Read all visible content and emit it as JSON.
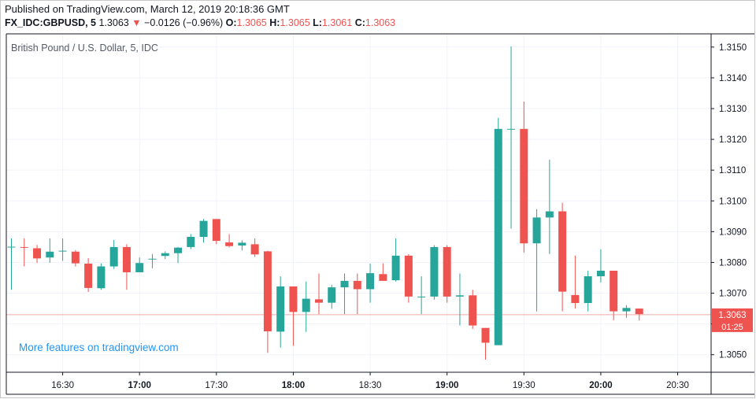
{
  "header": {
    "published": "Published on TradingView.com, March 12, 2019 20:18:36 GMT",
    "symbol": "FX_IDC:GBPUSD, 5",
    "last": "1.3063",
    "arrow": "▼",
    "change": "−0.0126 (−0.96%)",
    "o_label": "O:",
    "o_value": "1.3065",
    "h_label": "H:",
    "h_value": "1.3065",
    "l_label": "L:",
    "l_value": "1.3061",
    "c_label": "C:",
    "c_value": "1.3063"
  },
  "colors": {
    "up": "#26a69a",
    "down": "#ef5350",
    "grid": "#f0f3fa",
    "axis": "#131722",
    "link": "#2196f3"
  },
  "chart_data": {
    "type": "candlestick",
    "title": "British Pound / U.S. Dollar, 5, IDC",
    "watermark": "More features on tradingview.com",
    "ylim": [
      1.30443,
      1.31543
    ],
    "y_ticks": [
      "1.3050",
      "1.3060",
      "1.3070",
      "1.3080",
      "1.3090",
      "1.3100",
      "1.3110",
      "1.3120",
      "1.3130",
      "1.3140",
      "1.3150"
    ],
    "x_ticks": [
      {
        "label": "16:30",
        "bar": 4,
        "bold": false
      },
      {
        "label": "17:00",
        "bar": 10,
        "bold": true
      },
      {
        "label": "17:30",
        "bar": 16,
        "bold": false
      },
      {
        "label": "18:00",
        "bar": 22,
        "bold": true
      },
      {
        "label": "18:30",
        "bar": 28,
        "bold": false
      },
      {
        "label": "19:00",
        "bar": 34,
        "bold": true
      },
      {
        "label": "19:30",
        "bar": 40,
        "bold": false
      },
      {
        "label": "20:00",
        "bar": 46,
        "bold": true
      },
      {
        "label": "20:30",
        "bar": 52,
        "bold": false
      }
    ],
    "last_price": "1.3063",
    "countdown": "01:25",
    "candles": [
      {
        "t": "16:05",
        "o": 1.3085,
        "h": 1.30878,
        "l": 1.30711,
        "c": 1.30851
      },
      {
        "t": "16:10",
        "o": 1.3085,
        "h": 1.30878,
        "l": 1.30787,
        "c": 1.30849
      },
      {
        "t": "16:15",
        "o": 1.30846,
        "h": 1.30857,
        "l": 1.30798,
        "c": 1.30813
      },
      {
        "t": "16:20",
        "o": 1.30816,
        "h": 1.30878,
        "l": 1.30799,
        "c": 1.30835
      },
      {
        "t": "16:25",
        "o": 1.30838,
        "h": 1.30878,
        "l": 1.30805,
        "c": 1.30838
      },
      {
        "t": "16:30",
        "o": 1.30835,
        "h": 1.3084,
        "l": 1.30787,
        "c": 1.30797
      },
      {
        "t": "16:35",
        "o": 1.30796,
        "h": 1.30814,
        "l": 1.30704,
        "c": 1.30717
      },
      {
        "t": "16:40",
        "o": 1.30716,
        "h": 1.30797,
        "l": 1.30711,
        "c": 1.30787
      },
      {
        "t": "16:45",
        "o": 1.30787,
        "h": 1.30873,
        "l": 1.30779,
        "c": 1.3085
      },
      {
        "t": "16:50",
        "o": 1.3085,
        "h": 1.30859,
        "l": 1.30711,
        "c": 1.30768
      },
      {
        "t": "16:55",
        "o": 1.30768,
        "h": 1.30816,
        "l": 1.30768,
        "c": 1.30798
      },
      {
        "t": "17:00",
        "o": 1.30812,
        "h": 1.30827,
        "l": 1.30781,
        "c": 1.30812
      },
      {
        "t": "17:05",
        "o": 1.30821,
        "h": 1.30836,
        "l": 1.30811,
        "c": 1.3083
      },
      {
        "t": "17:10",
        "o": 1.3083,
        "h": 1.3085,
        "l": 1.30798,
        "c": 1.30848
      },
      {
        "t": "17:15",
        "o": 1.3085,
        "h": 1.30892,
        "l": 1.30843,
        "c": 1.30883
      },
      {
        "t": "17:20",
        "o": 1.30883,
        "h": 1.30941,
        "l": 1.30864,
        "c": 1.30935
      },
      {
        "t": "17:25",
        "o": 1.30941,
        "h": 1.30941,
        "l": 1.30859,
        "c": 1.3087
      },
      {
        "t": "17:30",
        "o": 1.30865,
        "h": 1.30892,
        "l": 1.30849,
        "c": 1.30853
      },
      {
        "t": "17:35",
        "o": 1.30855,
        "h": 1.30872,
        "l": 1.30839,
        "c": 1.30864
      },
      {
        "t": "17:40",
        "o": 1.30859,
        "h": 1.30878,
        "l": 1.30818,
        "c": 1.30826
      },
      {
        "t": "17:45",
        "o": 1.30836,
        "h": 1.30838,
        "l": 1.30506,
        "c": 1.30576
      },
      {
        "t": "17:50",
        "o": 1.30575,
        "h": 1.30755,
        "l": 1.30523,
        "c": 1.30722
      },
      {
        "t": "17:55",
        "o": 1.30722,
        "h": 1.30722,
        "l": 1.30529,
        "c": 1.30639
      },
      {
        "t": "18:00",
        "o": 1.30639,
        "h": 1.30738,
        "l": 1.30574,
        "c": 1.30682
      },
      {
        "t": "18:05",
        "o": 1.3068,
        "h": 1.30764,
        "l": 1.30632,
        "c": 1.30669
      },
      {
        "t": "18:10",
        "o": 1.30669,
        "h": 1.30727,
        "l": 1.30649,
        "c": 1.30719
      },
      {
        "t": "18:15",
        "o": 1.30719,
        "h": 1.30764,
        "l": 1.30632,
        "c": 1.3074
      },
      {
        "t": "18:20",
        "o": 1.3074,
        "h": 1.30764,
        "l": 1.30632,
        "c": 1.30713
      },
      {
        "t": "18:25",
        "o": 1.30713,
        "h": 1.30796,
        "l": 1.30669,
        "c": 1.30765
      },
      {
        "t": "18:30",
        "o": 1.30762,
        "h": 1.30797,
        "l": 1.30745,
        "c": 1.3074
      },
      {
        "t": "18:35",
        "o": 1.30742,
        "h": 1.30878,
        "l": 1.30738,
        "c": 1.30822
      },
      {
        "t": "18:40",
        "o": 1.30822,
        "h": 1.30827,
        "l": 1.30669,
        "c": 1.30689
      },
      {
        "t": "18:45",
        "o": 1.30689,
        "h": 1.30755,
        "l": 1.30632,
        "c": 1.30689
      },
      {
        "t": "18:50",
        "o": 1.30689,
        "h": 1.30856,
        "l": 1.30679,
        "c": 1.3085
      },
      {
        "t": "18:55",
        "o": 1.3085,
        "h": 1.30856,
        "l": 1.30669,
        "c": 1.30689
      },
      {
        "t": "19:00",
        "o": 1.30689,
        "h": 1.30764,
        "l": 1.30595,
        "c": 1.30693
      },
      {
        "t": "19:05",
        "o": 1.30693,
        "h": 1.30711,
        "l": 1.30584,
        "c": 1.30595
      },
      {
        "t": "19:10",
        "o": 1.30587,
        "h": 1.30587,
        "l": 1.30484,
        "c": 1.30539
      },
      {
        "t": "19:15",
        "o": 1.30531,
        "h": 1.3127,
        "l": 1.30531,
        "c": 1.31234
      },
      {
        "t": "19:20",
        "o": 1.31234,
        "h": 1.31502,
        "l": 1.3091,
        "c": 1.31234
      },
      {
        "t": "19:25",
        "o": 1.31234,
        "h": 1.31323,
        "l": 1.30832,
        "c": 1.30862
      },
      {
        "t": "19:30",
        "o": 1.30862,
        "h": 1.30973,
        "l": 1.30641,
        "c": 1.30946
      },
      {
        "t": "19:35",
        "o": 1.30946,
        "h": 1.31134,
        "l": 1.30827,
        "c": 1.30966
      },
      {
        "t": "19:40",
        "o": 1.30966,
        "h": 1.30994,
        "l": 1.30641,
        "c": 1.30705
      },
      {
        "t": "19:45",
        "o": 1.30694,
        "h": 1.30822,
        "l": 1.3065,
        "c": 1.30668
      },
      {
        "t": "19:50",
        "o": 1.30668,
        "h": 1.30773,
        "l": 1.30641,
        "c": 1.30755
      },
      {
        "t": "19:55",
        "o": 1.30755,
        "h": 1.30843,
        "l": 1.30735,
        "c": 1.30773
      },
      {
        "t": "20:00",
        "o": 1.30773,
        "h": 1.30773,
        "l": 1.30612,
        "c": 1.30641
      },
      {
        "t": "20:05",
        "o": 1.30641,
        "h": 1.30661,
        "l": 1.3062,
        "c": 1.30652
      },
      {
        "t": "20:10",
        "o": 1.3065,
        "h": 1.3065,
        "l": 1.30611,
        "c": 1.30632
      }
    ]
  }
}
